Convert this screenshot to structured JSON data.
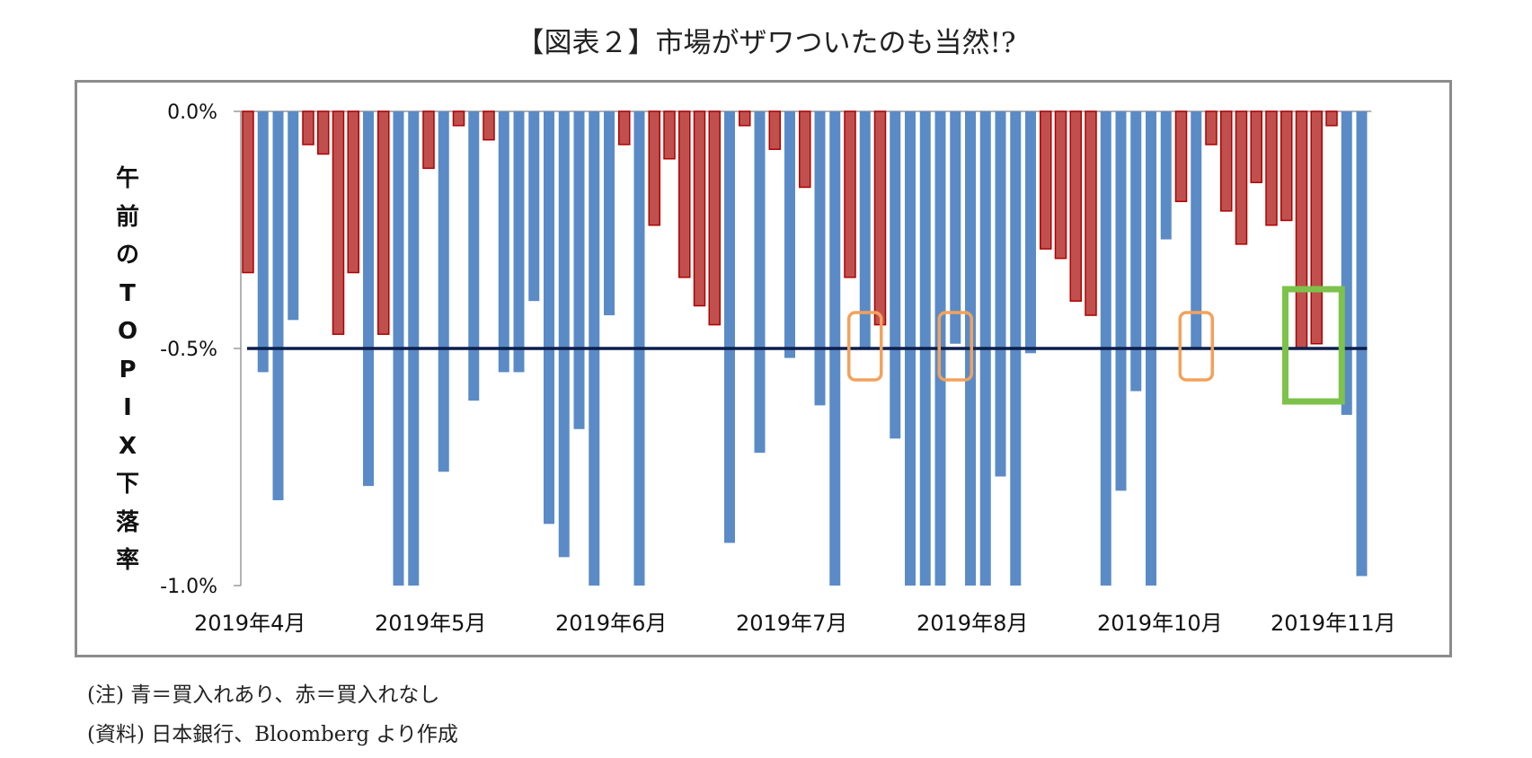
{
  "title": "【図表２】市場がザワついたのも当然!?",
  "notes": [
    "(注) 青＝買入れあり、赤＝買入れなし",
    "(資料) 日本銀行、Bloomberg より作成"
  ],
  "chart_data": {
    "type": "bar",
    "title": "【図表２】市場がザワついたのも当然!?",
    "ylabel": "午前のTOPIX下落率",
    "ylim": [
      -1.0,
      0.0
    ],
    "yticks": [
      0.0,
      -0.5,
      -1.0
    ],
    "ytick_labels": [
      "0.0%",
      "-0.5%",
      "-1.0%"
    ],
    "reference_line": -0.5,
    "month_labels": [
      "2019年4月",
      "2019年5月",
      "2019年6月",
      "2019年7月",
      "2019年8月",
      "2019年10月",
      "2019年11月"
    ],
    "month_label_index": [
      0,
      12,
      24,
      36,
      48,
      60,
      72
    ],
    "legend_note": "(注) 青＝買入れあり、赤＝買入れなし",
    "colors": {
      "buy": "#5b8bc6",
      "no_buy": "#c0504d",
      "no_buy_edge": "#b00000",
      "line": "#0b1f4d",
      "highlight_orange": "#f2a25c",
      "highlight_green": "#7dc24b"
    },
    "series": [
      {
        "name": "買入れあり",
        "color": "blue"
      },
      {
        "name": "買入れなし",
        "color": "red"
      }
    ],
    "values": [
      -0.34,
      -0.55,
      -0.82,
      -0.44,
      -0.07,
      -0.09,
      -0.47,
      -0.34,
      -0.79,
      -0.47,
      -1.0,
      -1.0,
      -0.12,
      -0.76,
      -0.03,
      -0.61,
      -0.06,
      -0.55,
      -0.55,
      -0.4,
      -0.87,
      -0.94,
      -0.67,
      -1.0,
      -0.43,
      -0.07,
      -1.0,
      -0.24,
      -0.1,
      -0.35,
      -0.41,
      -0.45,
      -0.91,
      -0.03,
      -0.72,
      -0.08,
      -0.52,
      -0.16,
      -0.62,
      -1.0,
      -0.35,
      -0.5,
      -0.45,
      -0.69,
      -1.0,
      -1.0,
      -1.0,
      -0.49,
      -1.0,
      -1.0,
      -0.77,
      -1.0,
      -0.51,
      -0.29,
      -0.31,
      -0.4,
      -0.43,
      -1.0,
      -0.8,
      -0.59,
      -1.0,
      -0.27,
      -0.19,
      -0.5,
      -0.07,
      -0.21,
      -0.28,
      -0.15,
      -0.24,
      -0.23,
      -0.5,
      -0.49,
      -0.03,
      -0.64,
      -0.98
    ],
    "buy_flags": [
      0,
      1,
      1,
      1,
      0,
      0,
      0,
      0,
      1,
      0,
      1,
      1,
      0,
      1,
      0,
      1,
      0,
      1,
      1,
      1,
      1,
      1,
      1,
      1,
      1,
      0,
      1,
      0,
      0,
      0,
      0,
      0,
      1,
      0,
      1,
      0,
      1,
      0,
      1,
      1,
      0,
      1,
      0,
      1,
      1,
      1,
      1,
      1,
      1,
      1,
      1,
      1,
      1,
      0,
      0,
      0,
      0,
      1,
      1,
      1,
      1,
      1,
      0,
      1,
      0,
      0,
      0,
      0,
      0,
      0,
      0,
      0,
      0,
      1,
      1
    ],
    "highlights": [
      {
        "bar_index": 41,
        "color": "orange"
      },
      {
        "bar_index": 47,
        "color": "orange"
      },
      {
        "bar_index": 63,
        "color": "orange"
      },
      {
        "bar_index": 70,
        "bar_index_end": 71,
        "color": "green"
      }
    ]
  }
}
